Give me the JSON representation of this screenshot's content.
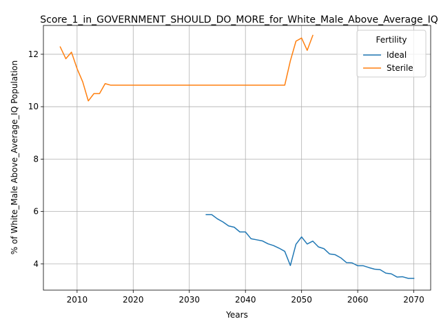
{
  "chart_data": {
    "type": "line",
    "title": "Score_1_in_GOVERNMENT_SHOULD_DO_MORE_for_White_Male_Above_Average_IQ",
    "xlabel": "Years",
    "ylabel": "% of White_Male Above_Average_IQ Population",
    "xlim": [
      2004,
      2073
    ],
    "ylim": [
      3.0,
      13.1
    ],
    "xticks": [
      2010,
      2020,
      2030,
      2040,
      2050,
      2060,
      2070
    ],
    "yticks": [
      4,
      6,
      8,
      10,
      12
    ],
    "grid": true,
    "legend": {
      "title": "Fertility",
      "placement": "top-right"
    },
    "series": [
      {
        "name": "Ideal",
        "color": "#1f77b4",
        "x": [
          2033,
          2034,
          2035,
          2036,
          2037,
          2038,
          2039,
          2040,
          2041,
          2042,
          2043,
          2044,
          2045,
          2046,
          2047,
          2048,
          2049,
          2050,
          2051,
          2052,
          2053,
          2054,
          2055,
          2056,
          2057,
          2058,
          2059,
          2060,
          2061,
          2062,
          2063,
          2064,
          2065,
          2066,
          2067,
          2068,
          2069,
          2070
        ],
        "y": [
          5.88,
          5.88,
          5.72,
          5.6,
          5.45,
          5.4,
          5.22,
          5.22,
          4.96,
          4.92,
          4.88,
          4.77,
          4.7,
          4.6,
          4.48,
          3.94,
          4.75,
          5.03,
          4.76,
          4.87,
          4.65,
          4.58,
          4.38,
          4.35,
          4.23,
          4.05,
          4.04,
          3.93,
          3.93,
          3.86,
          3.8,
          3.78,
          3.65,
          3.62,
          3.5,
          3.51,
          3.45,
          3.45
        ]
      },
      {
        "name": "Sterile",
        "color": "#ff7f0e",
        "x": [
          2007,
          2008,
          2009,
          2010,
          2011,
          2012,
          2013,
          2014,
          2015,
          2016,
          2017,
          2018,
          2019,
          2020,
          2021,
          2022,
          2023,
          2024,
          2025,
          2026,
          2027,
          2028,
          2029,
          2030,
          2031,
          2032,
          2033,
          2034,
          2035,
          2036,
          2037,
          2038,
          2039,
          2040,
          2041,
          2042,
          2043,
          2044,
          2045,
          2046,
          2047,
          2048,
          2049,
          2050,
          2051,
          2052
        ],
        "y": [
          12.28,
          11.83,
          12.08,
          11.45,
          10.95,
          10.22,
          10.5,
          10.5,
          10.88,
          10.82,
          10.82,
          10.82,
          10.82,
          10.82,
          10.82,
          10.82,
          10.82,
          10.82,
          10.82,
          10.82,
          10.82,
          10.82,
          10.82,
          10.82,
          10.82,
          10.82,
          10.82,
          10.82,
          10.82,
          10.82,
          10.82,
          10.82,
          10.82,
          10.82,
          10.82,
          10.82,
          10.82,
          10.82,
          10.82,
          10.82,
          10.82,
          11.75,
          12.5,
          12.62,
          12.15,
          12.72
        ]
      }
    ]
  }
}
